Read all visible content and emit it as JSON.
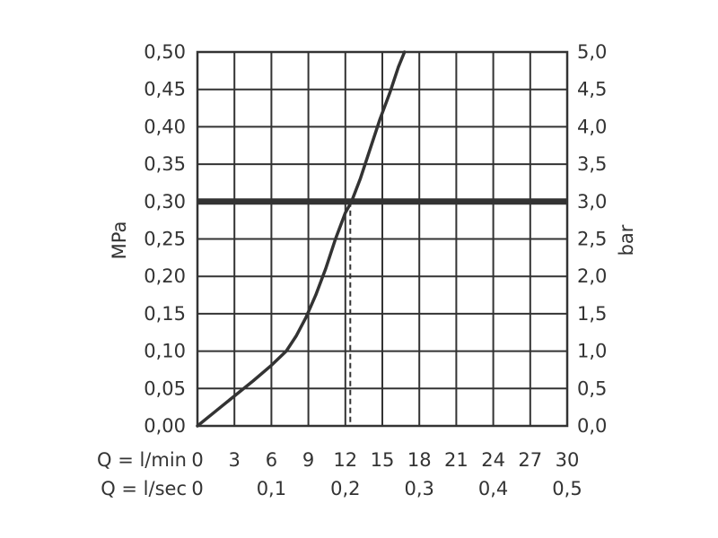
{
  "chart_data": {
    "type": "line",
    "ylabel_left": "MPa",
    "ylabel_right": "bar",
    "x_row1_label": "Q = l/min",
    "x_row2_label": "Q = l/sec",
    "x_ticks_lmin": [
      "0",
      "3",
      "6",
      "9",
      "12",
      "15",
      "18",
      "21",
      "24",
      "27",
      "30"
    ],
    "x_ticks_lsec": [
      "0",
      "0,1",
      "0,2",
      "0,3",
      "0,4",
      "0,5"
    ],
    "y_ticks_mpa": [
      "0,00",
      "0,05",
      "0,10",
      "0,15",
      "0,20",
      "0,25",
      "0,30",
      "0,35",
      "0,40",
      "0,45",
      "0,50"
    ],
    "y_ticks_bar": [
      "0,0",
      "0,5",
      "1,0",
      "1,5",
      "2,0",
      "2,5",
      "3,0",
      "3,5",
      "4,0",
      "4,5",
      "5,0"
    ],
    "xlim": [
      0,
      30
    ],
    "ylim": [
      0,
      0.5
    ],
    "grid": true,
    "series": [
      {
        "x": [
          0,
          1.5,
          3,
          4.5,
          6,
          7.2,
          8,
          8.8,
          9.6,
          10.4,
          11.2,
          12,
          12.5,
          13.2,
          14,
          14.8,
          15.6,
          16.3,
          16.8
        ],
        "values": [
          0,
          0.02,
          0.04,
          0.06,
          0.081,
          0.1,
          0.12,
          0.145,
          0.175,
          0.21,
          0.25,
          0.285,
          0.3,
          0.33,
          0.37,
          0.41,
          0.445,
          0.48,
          0.5
        ]
      }
    ],
    "reference_line": {
      "y": 0.3,
      "x_at": 12.4
    }
  }
}
